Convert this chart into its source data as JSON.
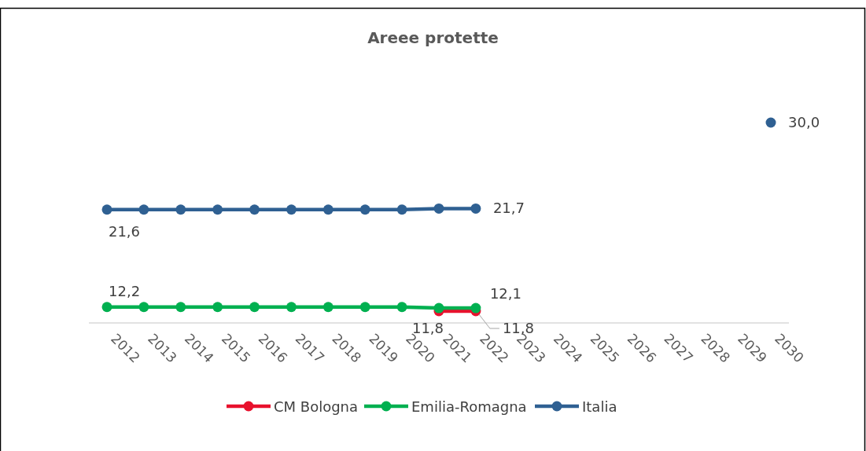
{
  "chart_data": {
    "type": "line",
    "title": "Areee protette",
    "categories": [
      "2012",
      "2013",
      "2014",
      "2015",
      "2016",
      "2017",
      "2018",
      "2019",
      "2020",
      "2021",
      "2022",
      "2023",
      "2024",
      "2025",
      "2026",
      "2027",
      "2028",
      "2029",
      "2030"
    ],
    "tick_labels": "x",
    "legend": "bottom",
    "marker": "circle",
    "series": [
      {
        "name": "CM Bologna",
        "color": "#e8112d",
        "values": [
          null,
          null,
          null,
          null,
          null,
          null,
          null,
          null,
          null,
          11.8,
          11.8,
          null,
          null,
          null,
          null,
          null,
          null,
          null,
          null
        ],
        "value_labels": [
          null,
          null,
          null,
          null,
          null,
          null,
          null,
          null,
          null,
          "11,8",
          "11,8",
          null,
          null,
          null,
          null,
          null,
          null,
          null,
          null
        ]
      },
      {
        "name": "Emilia-Romagna",
        "color": "#00b050",
        "values": [
          12.2,
          12.2,
          12.2,
          12.2,
          12.2,
          12.2,
          12.2,
          12.2,
          12.2,
          12.1,
          12.1,
          null,
          null,
          null,
          null,
          null,
          null,
          null,
          null
        ],
        "value_labels": [
          "12,2",
          null,
          null,
          null,
          null,
          null,
          null,
          null,
          null,
          null,
          "12,1",
          null,
          null,
          null,
          null,
          null,
          null,
          null,
          null
        ]
      },
      {
        "name": "Italia",
        "color": "#2f6092",
        "values": [
          21.6,
          21.6,
          21.6,
          21.6,
          21.6,
          21.6,
          21.6,
          21.6,
          21.6,
          21.7,
          21.7,
          null,
          null,
          null,
          null,
          null,
          null,
          null,
          30.0
        ],
        "value_labels": [
          "21,6",
          null,
          null,
          null,
          null,
          null,
          null,
          null,
          null,
          null,
          "21,7",
          null,
          null,
          null,
          null,
          null,
          null,
          null,
          "30,0"
        ]
      }
    ]
  }
}
